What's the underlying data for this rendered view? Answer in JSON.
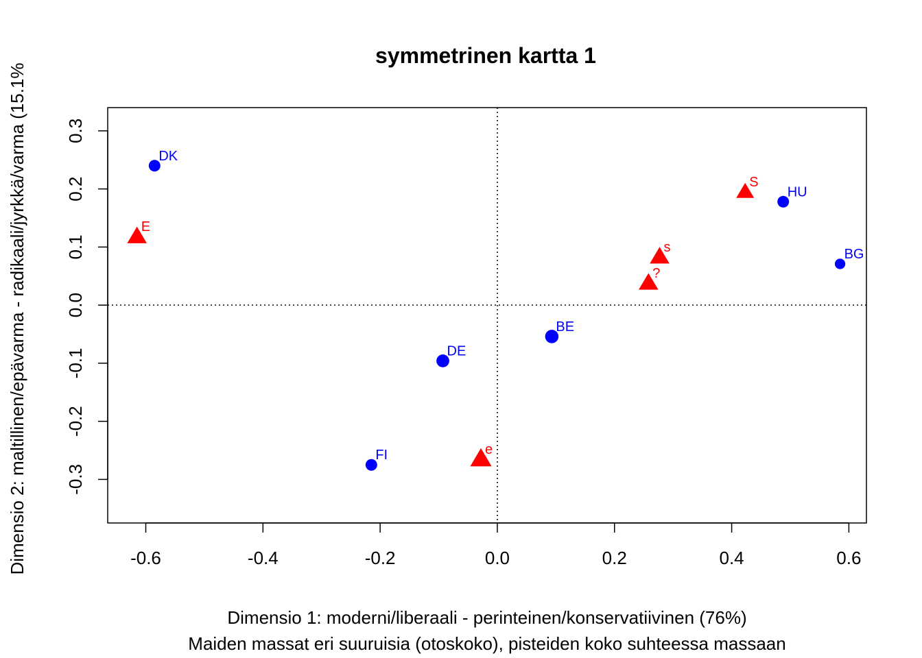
{
  "chart_data": {
    "type": "scatter",
    "title": "symmetrinen kartta 1",
    "xlabel": "Dimensio 1: moderni/liberaali - perinteinen/konservatiivinen (76%)",
    "xlabel2": "Maiden massat eri suuruisia (otoskoko), pisteiden koko suhteessa massaan",
    "ylabel": "Dimensio 2: maltillinen/epävarma - radikaali/jyrkkä/varma (15.1%",
    "xlim": [
      -0.665,
      0.63
    ],
    "ylim": [
      -0.375,
      0.34
    ],
    "xticks": [
      -0.6,
      -0.4,
      -0.2,
      0.0,
      0.2,
      0.4,
      0.6
    ],
    "xtick_labels": [
      "-0.6",
      "-0.4",
      "-0.2",
      "0.0",
      "0.2",
      "0.4",
      "0.6"
    ],
    "yticks": [
      -0.3,
      -0.2,
      -0.1,
      0.0,
      0.1,
      0.2,
      0.3
    ],
    "ytick_labels": [
      "-0.3",
      "-0.2",
      "-0.1",
      "0.0",
      "0.1",
      "0.2",
      "0.3"
    ],
    "reference_lines": {
      "x": 0,
      "y": 0,
      "style": "dotted"
    },
    "grid": false,
    "colors": {
      "rows": "#0000ff",
      "columns": "#ff0000"
    },
    "series": [
      {
        "marker": "circle",
        "color": "#0000ff",
        "points": [
          {
            "label": "DK",
            "x": -0.585,
            "y": 0.24,
            "mass": 1.0
          },
          {
            "label": "HU",
            "x": 0.488,
            "y": 0.178,
            "mass": 1.0
          },
          {
            "label": "BG",
            "x": 0.585,
            "y": 0.071,
            "mass": 0.9
          },
          {
            "label": "BE",
            "x": 0.093,
            "y": -0.054,
            "mass": 1.15
          },
          {
            "label": "DE",
            "x": -0.093,
            "y": -0.096,
            "mass": 1.1
          },
          {
            "label": "FI",
            "x": -0.215,
            "y": -0.275,
            "mass": 1.0
          }
        ]
      },
      {
        "marker": "triangle",
        "color": "#ff0000",
        "points": [
          {
            "label": "E",
            "x": -0.615,
            "y": 0.118,
            "mass": 1.1
          },
          {
            "label": "S",
            "x": 0.423,
            "y": 0.195,
            "mass": 1.0
          },
          {
            "label": "s",
            "x": 0.277,
            "y": 0.083,
            "mass": 1.1
          },
          {
            "label": "?",
            "x": 0.258,
            "y": 0.038,
            "mass": 1.1
          },
          {
            "label": "e",
            "x": -0.028,
            "y": -0.265,
            "mass": 1.2
          }
        ]
      }
    ]
  }
}
